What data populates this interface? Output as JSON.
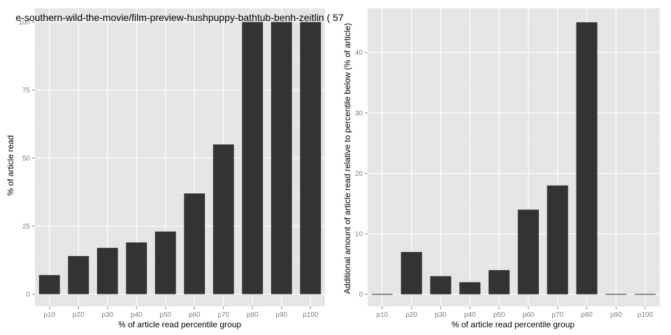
{
  "chart_data": [
    {
      "type": "bar",
      "title": "e-southern-wild-the-movie/film-preview-hushpuppy-bathtub-benh-zeitlin ( 57",
      "xlabel": "% of article read percentile group",
      "ylabel": "% of article read",
      "categories": [
        "p10",
        "p20",
        "p30",
        "p40",
        "p50",
        "p60",
        "p70",
        "p80",
        "p90",
        "p100"
      ],
      "values": [
        7,
        14,
        17,
        19,
        23,
        37,
        55,
        100,
        100,
        100
      ],
      "ylim": [
        -4.5,
        105
      ],
      "yticks": [
        0,
        25,
        50,
        75,
        100
      ],
      "grid": true,
      "bar_color": "#333333",
      "panel_color": "#e5e5e5"
    },
    {
      "type": "bar",
      "title": "",
      "xlabel": "% of article read percentile group",
      "ylabel": "Additional amount of article read relative to percentile below (% of article)",
      "categories": [
        "p10",
        "p20",
        "p30",
        "p40",
        "p50",
        "p60",
        "p70",
        "p80",
        "p90",
        "p100"
      ],
      "values": [
        0,
        7,
        3,
        2,
        4,
        14,
        18,
        45,
        0,
        0
      ],
      "ylim": [
        -2,
        47.3
      ],
      "yticks": [
        0,
        10,
        20,
        30,
        40
      ],
      "grid": true,
      "bar_color": "#333333",
      "panel_color": "#e5e5e5"
    }
  ]
}
